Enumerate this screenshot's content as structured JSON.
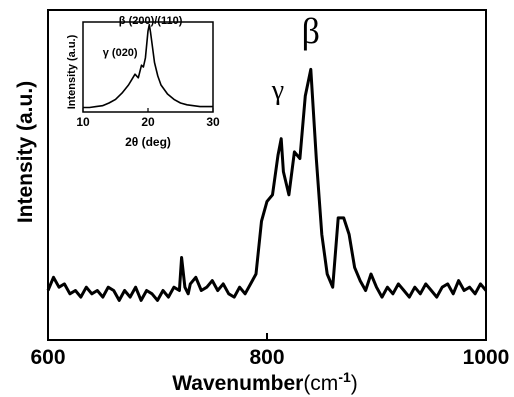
{
  "chart_data": [
    {
      "type": "line",
      "xlabel": "Wavenumber",
      "xlabel_unit": "(cm",
      "xlabel_sup": "-1",
      "xlabel_close": ")",
      "ylabel": "Intensity (a.u.)",
      "xlim": [
        600,
        1000
      ],
      "ylim": [
        0,
        1
      ],
      "x_ticks": [
        600,
        800,
        1000
      ],
      "x_tick_labels": [
        "600",
        "800",
        "1000"
      ],
      "y_ticks_shown": false,
      "grid": false,
      "annotations": [
        {
          "text": "γ",
          "x": 810,
          "y": 0.73
        },
        {
          "text": "β",
          "x": 840,
          "y": 0.9
        }
      ],
      "series": [
        {
          "color": "#000000",
          "x": [
            600,
            605,
            610,
            615,
            620,
            625,
            630,
            635,
            640,
            645,
            650,
            655,
            660,
            665,
            670,
            675,
            680,
            685,
            690,
            695,
            700,
            705,
            710,
            715,
            720,
            722,
            725,
            728,
            730,
            735,
            740,
            745,
            750,
            755,
            760,
            765,
            770,
            775,
            780,
            785,
            790,
            795,
            800,
            805,
            810,
            813,
            815,
            820,
            825,
            830,
            835,
            840,
            845,
            850,
            855,
            860,
            865,
            870,
            875,
            880,
            885,
            890,
            895,
            900,
            905,
            910,
            915,
            920,
            925,
            930,
            935,
            940,
            945,
            950,
            955,
            960,
            965,
            970,
            975,
            980,
            985,
            990,
            995,
            1000
          ],
          "y": [
            0.15,
            0.19,
            0.16,
            0.17,
            0.14,
            0.15,
            0.13,
            0.16,
            0.14,
            0.15,
            0.13,
            0.16,
            0.15,
            0.12,
            0.15,
            0.13,
            0.16,
            0.12,
            0.15,
            0.14,
            0.12,
            0.15,
            0.13,
            0.16,
            0.15,
            0.25,
            0.16,
            0.14,
            0.17,
            0.19,
            0.15,
            0.16,
            0.18,
            0.15,
            0.17,
            0.14,
            0.13,
            0.16,
            0.14,
            0.17,
            0.2,
            0.36,
            0.42,
            0.44,
            0.56,
            0.61,
            0.51,
            0.44,
            0.57,
            0.55,
            0.74,
            0.82,
            0.55,
            0.32,
            0.2,
            0.16,
            0.37,
            0.37,
            0.32,
            0.22,
            0.18,
            0.15,
            0.2,
            0.16,
            0.13,
            0.16,
            0.14,
            0.17,
            0.15,
            0.13,
            0.16,
            0.14,
            0.17,
            0.15,
            0.13,
            0.16,
            0.17,
            0.14,
            0.18,
            0.15,
            0.16,
            0.14,
            0.17,
            0.15
          ]
        }
      ]
    },
    {
      "type": "line",
      "xlabel": "2θ (deg)",
      "ylabel": "Intensity (a.u.)",
      "xlim": [
        10,
        30
      ],
      "ylim": [
        0,
        1
      ],
      "x_ticks": [
        10,
        20,
        30
      ],
      "x_tick_labels": [
        "10",
        "20",
        "30"
      ],
      "y_ticks_shown": false,
      "grid": false,
      "annotations": [
        {
          "text": "γ (020)",
          "x": 18.4,
          "y": 0.62
        },
        {
          "text": "β (200)/(110)",
          "x": 20.4,
          "y": 0.98
        }
      ],
      "series": [
        {
          "color": "#000000",
          "x": [
            10,
            11,
            12,
            13,
            14,
            15,
            16,
            17,
            17.5,
            18,
            18.5,
            19,
            19.3,
            19.6,
            20,
            20.2,
            20.4,
            20.7,
            21,
            21.5,
            22,
            23,
            24,
            25,
            26,
            27,
            28,
            29,
            30
          ],
          "y": [
            0.05,
            0.05,
            0.06,
            0.07,
            0.1,
            0.14,
            0.21,
            0.3,
            0.36,
            0.42,
            0.38,
            0.52,
            0.5,
            0.6,
            0.9,
            0.97,
            0.88,
            0.72,
            0.55,
            0.4,
            0.3,
            0.2,
            0.14,
            0.1,
            0.08,
            0.07,
            0.06,
            0.06,
            0.06
          ]
        }
      ]
    }
  ]
}
